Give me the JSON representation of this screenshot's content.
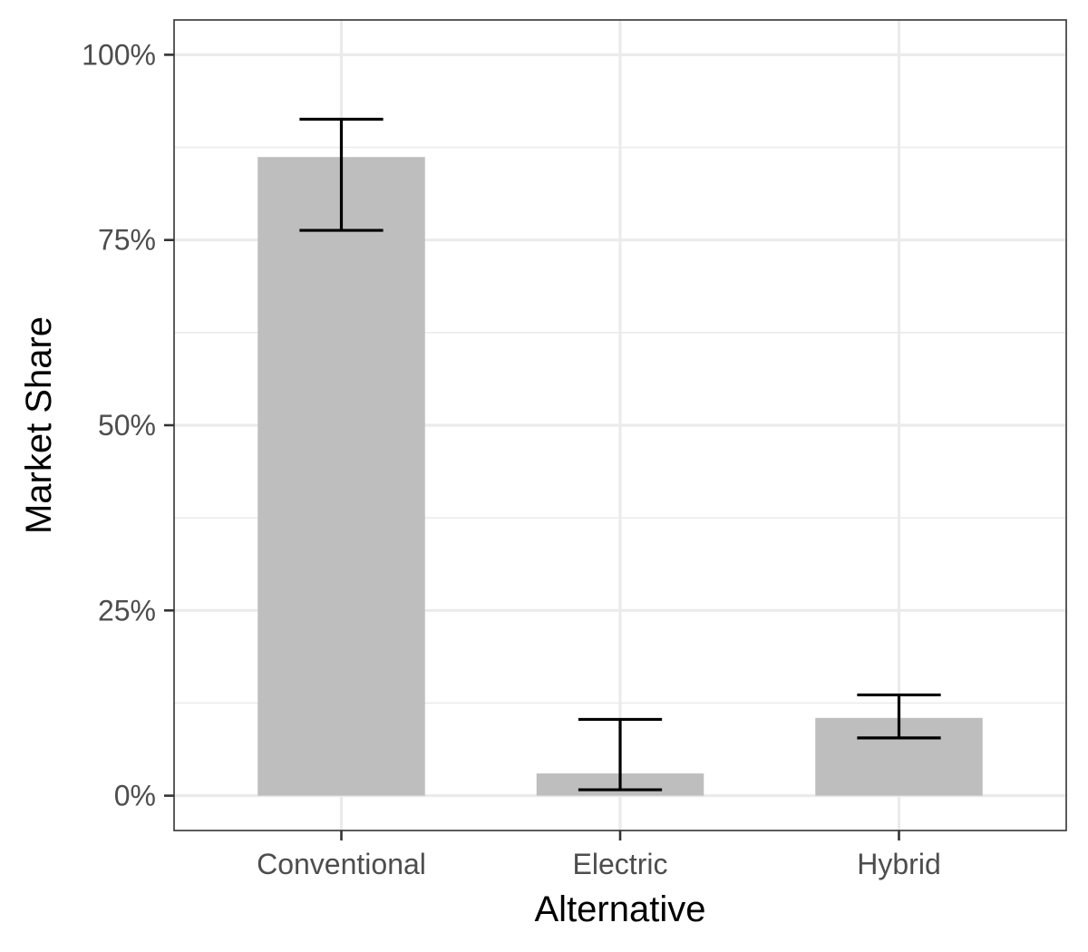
{
  "chart_data": {
    "type": "bar",
    "title": "",
    "xlabel": "Alternative",
    "ylabel": "Market Share",
    "categories": [
      "Conventional",
      "Electric",
      "Hybrid"
    ],
    "values": [
      0.862,
      0.03,
      0.105
    ],
    "error_lower": [
      0.763,
      0.008,
      0.078
    ],
    "error_upper": [
      0.913,
      0.103,
      0.136
    ],
    "ylim": [
      -0.047,
      1.047
    ],
    "y_ticks": [
      0,
      0.25,
      0.5,
      0.75,
      1.0
    ],
    "y_tick_labels": [
      "0%",
      "25%",
      "50%",
      "75%",
      "100%"
    ],
    "y_minor_ticks": [
      0.125,
      0.375,
      0.625,
      0.875
    ],
    "grid": true,
    "legend": "none"
  },
  "colors": {
    "bar": "#bebebe",
    "grid": "#ebebeb",
    "panel_border": "#333333",
    "error_bar": "#000000",
    "tick_label": "#4d4d4d"
  }
}
